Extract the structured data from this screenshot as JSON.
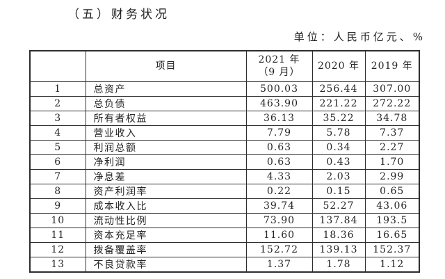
{
  "page": {
    "title": "（五）财务状况",
    "unit_label": "单位：人民币亿元、%"
  },
  "table": {
    "header": {
      "index": "",
      "item": "项目",
      "col_2021_line1": "2021 年",
      "col_2021_line2": "（9 月）",
      "col_2020": "2020 年",
      "col_2019": "2019 年"
    },
    "rows": [
      {
        "no": "1",
        "item": "总资产",
        "y2021": "500.03",
        "y2020": "256.44",
        "y2019": "307.00"
      },
      {
        "no": "2",
        "item": "总负债",
        "y2021": "463.90",
        "y2020": "221.22",
        "y2019": "272.22"
      },
      {
        "no": "3",
        "item": "所有者权益",
        "y2021": "36.13",
        "y2020": "35.22",
        "y2019": "34.78"
      },
      {
        "no": "4",
        "item": "营业收入",
        "y2021": "7.79",
        "y2020": "5.78",
        "y2019": "7.37"
      },
      {
        "no": "5",
        "item": "利润总额",
        "y2021": "0.63",
        "y2020": "0.34",
        "y2019": "2.27"
      },
      {
        "no": "6",
        "item": "净利润",
        "y2021": "0.63",
        "y2020": "0.43",
        "y2019": "1.70"
      },
      {
        "no": "7",
        "item": "净息差",
        "y2021": "4.33",
        "y2020": "2.03",
        "y2019": "2.99"
      },
      {
        "no": "8",
        "item": "资产利润率",
        "y2021": "0.22",
        "y2020": "0.15",
        "y2019": "0.65"
      },
      {
        "no": "9",
        "item": "成本收入比",
        "y2021": "39.74",
        "y2020": "52.27",
        "y2019": "43.06"
      },
      {
        "no": "10",
        "item": "流动性比例",
        "y2021": "73.90",
        "y2020": "137.84",
        "y2019": "193.5"
      },
      {
        "no": "11",
        "item": "资本充足率",
        "y2021": "11.60",
        "y2020": "18.36",
        "y2019": "16.65"
      },
      {
        "no": "12",
        "item": "拨备覆盖率",
        "y2021": "152.72",
        "y2020": "139.13",
        "y2019": "152.37"
      },
      {
        "no": "13",
        "item": "不良贷款率",
        "y2021": "1.37",
        "y2020": "1.78",
        "y2019": "1.12"
      }
    ]
  }
}
